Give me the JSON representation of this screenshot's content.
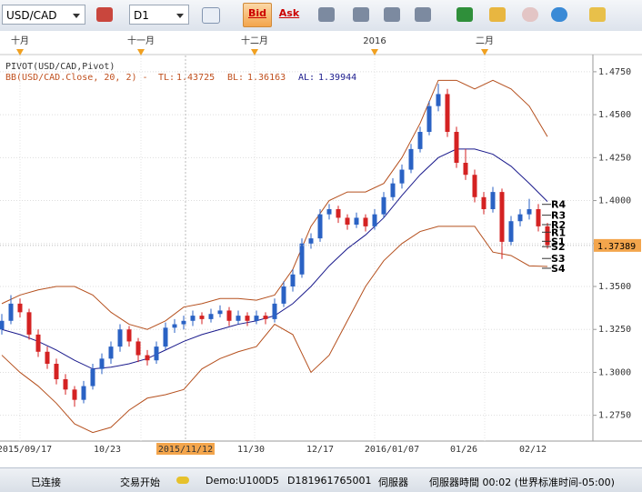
{
  "toolbar": {
    "symbol": "USD/CAD",
    "timeframe": "D1",
    "bid": "Bid",
    "ask": "Ask"
  },
  "status": {
    "connection": "已连接",
    "trading": "交易开始",
    "account": "Demo:U100D5",
    "id": "D181961765001",
    "server": "伺服器",
    "server_time": "伺服器時間 00:02 (世界标准时间-05:00)"
  },
  "chart_data": {
    "type": "candlestick",
    "indicator_pivot": "PIVOT(USD/CAD,Pivot)",
    "indicator_bb": "BB(USD/CAD.Close, 20, 2) -",
    "tl_label": "TL:",
    "tl": 1.43725,
    "bl_label": "BL:",
    "bl": 1.36163,
    "al_label": "AL:",
    "al": 1.39944,
    "month_labels": [
      "十月",
      "十一月",
      "十二月",
      "2016",
      "二月"
    ],
    "date_labels": [
      "2015/09/17",
      "10/23",
      "2015/11/12",
      "11/30",
      "12/17",
      "2016/01/07",
      "01/26",
      "02/12"
    ],
    "ylim": [
      1.26,
      1.485
    ],
    "yticks": [
      {
        "value": 1.275,
        "label": "1.2750"
      },
      {
        "value": 1.3,
        "label": "1.3000"
      },
      {
        "value": 1.325,
        "label": "1.3250"
      },
      {
        "value": 1.35,
        "label": "1.3500"
      },
      {
        "value": 1.375,
        "label": "1.3750"
      },
      {
        "value": 1.4,
        "label": "1.4000"
      },
      {
        "value": 1.425,
        "label": "1.4250"
      },
      {
        "value": 1.45,
        "label": "1.4500"
      },
      {
        "value": 1.475,
        "label": "1.4750"
      }
    ],
    "current_price": 1.37389,
    "up_color": "#2a62c4",
    "down_color": "#d42222",
    "open": [
      1.325,
      1.33,
      1.34,
      1.335,
      1.322,
      1.312,
      1.305,
      1.296,
      1.29,
      1.284,
      1.292,
      1.302,
      1.308,
      1.315,
      1.325,
      1.318,
      1.31,
      1.307,
      1.315,
      1.326,
      1.328,
      1.33,
      1.333,
      1.331,
      1.334,
      1.336,
      1.33,
      1.333,
      1.33,
      1.333,
      1.331,
      1.34,
      1.35,
      1.357,
      1.375,
      1.378,
      1.392,
      1.395,
      1.39,
      1.386,
      1.39,
      1.385,
      1.392,
      1.402,
      1.41,
      1.418,
      1.43,
      1.44,
      1.455,
      1.462,
      1.44,
      1.422,
      1.415,
      1.402,
      1.395,
      1.405,
      1.376,
      1.388,
      1.392,
      1.395,
      1.385
    ],
    "high": [
      1.334,
      1.345,
      1.343,
      1.337,
      1.325,
      1.315,
      1.308,
      1.299,
      1.292,
      1.295,
      1.305,
      1.311,
      1.318,
      1.328,
      1.327,
      1.32,
      1.313,
      1.318,
      1.329,
      1.331,
      1.333,
      1.336,
      1.335,
      1.337,
      1.339,
      1.338,
      1.336,
      1.335,
      1.336,
      1.335,
      1.343,
      1.353,
      1.36,
      1.378,
      1.381,
      1.395,
      1.398,
      1.397,
      1.392,
      1.393,
      1.392,
      1.395,
      1.405,
      1.413,
      1.421,
      1.433,
      1.443,
      1.458,
      1.468,
      1.465,
      1.443,
      1.43,
      1.418,
      1.405,
      1.408,
      1.407,
      1.391,
      1.395,
      1.401,
      1.398,
      1.387
    ],
    "low": [
      1.322,
      1.328,
      1.332,
      1.319,
      1.309,
      1.302,
      1.293,
      1.287,
      1.28,
      1.282,
      1.29,
      1.299,
      1.305,
      1.312,
      1.315,
      1.306,
      1.304,
      1.305,
      1.313,
      1.323,
      1.325,
      1.327,
      1.328,
      1.329,
      1.332,
      1.327,
      1.328,
      1.327,
      1.328,
      1.328,
      1.329,
      1.338,
      1.347,
      1.355,
      1.372,
      1.376,
      1.389,
      1.387,
      1.383,
      1.384,
      1.382,
      1.383,
      1.39,
      1.4,
      1.407,
      1.416,
      1.428,
      1.438,
      1.452,
      1.437,
      1.419,
      1.412,
      1.399,
      1.392,
      1.393,
      1.366,
      1.374,
      1.385,
      1.389,
      1.382,
      1.372
    ],
    "close": [
      1.33,
      1.34,
      1.335,
      1.322,
      1.312,
      1.305,
      1.296,
      1.29,
      1.284,
      1.292,
      1.302,
      1.308,
      1.315,
      1.325,
      1.318,
      1.31,
      1.307,
      1.315,
      1.326,
      1.328,
      1.33,
      1.333,
      1.331,
      1.334,
      1.336,
      1.33,
      1.333,
      1.33,
      1.333,
      1.331,
      1.34,
      1.35,
      1.357,
      1.375,
      1.378,
      1.392,
      1.395,
      1.39,
      1.386,
      1.39,
      1.385,
      1.392,
      1.402,
      1.41,
      1.418,
      1.43,
      1.44,
      1.455,
      1.462,
      1.44,
      1.422,
      1.415,
      1.402,
      1.395,
      1.405,
      1.376,
      1.388,
      1.392,
      1.395,
      1.385,
      1.374
    ],
    "bands": [
      {
        "color": "#b5501e",
        "values": [
          1.34,
          1.345,
          1.348,
          1.35,
          1.35,
          1.345,
          1.335,
          1.328,
          1.325,
          1.33,
          1.338,
          1.34,
          1.343,
          1.343,
          1.342,
          1.345,
          1.36,
          1.385,
          1.4,
          1.405,
          1.405,
          1.41,
          1.425,
          1.445,
          1.47,
          1.47,
          1.465,
          1.47,
          1.465,
          1.455,
          1.43725
        ]
      },
      {
        "color": "#1a1a8c",
        "values": [
          1.325,
          1.322,
          1.318,
          1.313,
          1.307,
          1.302,
          1.303,
          1.305,
          1.308,
          1.313,
          1.318,
          1.322,
          1.325,
          1.328,
          1.33,
          1.333,
          1.34,
          1.35,
          1.362,
          1.372,
          1.38,
          1.39,
          1.403,
          1.415,
          1.425,
          1.43,
          1.43,
          1.427,
          1.42,
          1.41,
          1.39944
        ]
      },
      {
        "color": "#b5501e",
        "values": [
          1.31,
          1.3,
          1.292,
          1.282,
          1.27,
          1.265,
          1.268,
          1.278,
          1.285,
          1.287,
          1.29,
          1.302,
          1.308,
          1.312,
          1.315,
          1.328,
          1.322,
          1.3,
          1.31,
          1.33,
          1.35,
          1.365,
          1.375,
          1.382,
          1.385,
          1.385,
          1.385,
          1.37,
          1.368,
          1.362,
          1.36163
        ]
      }
    ],
    "pivots": [
      {
        "name": "R4",
        "value": 1.3978
      },
      {
        "name": "R3",
        "value": 1.3915
      },
      {
        "name": "R2",
        "value": 1.386
      },
      {
        "name": "R1",
        "value": 1.3816
      },
      {
        "name": "S1",
        "value": 1.3763
      },
      {
        "name": "S2",
        "value": 1.3732
      },
      {
        "name": "S3",
        "value": 1.3663
      },
      {
        "name": "S4",
        "value": 1.3606
      }
    ]
  }
}
